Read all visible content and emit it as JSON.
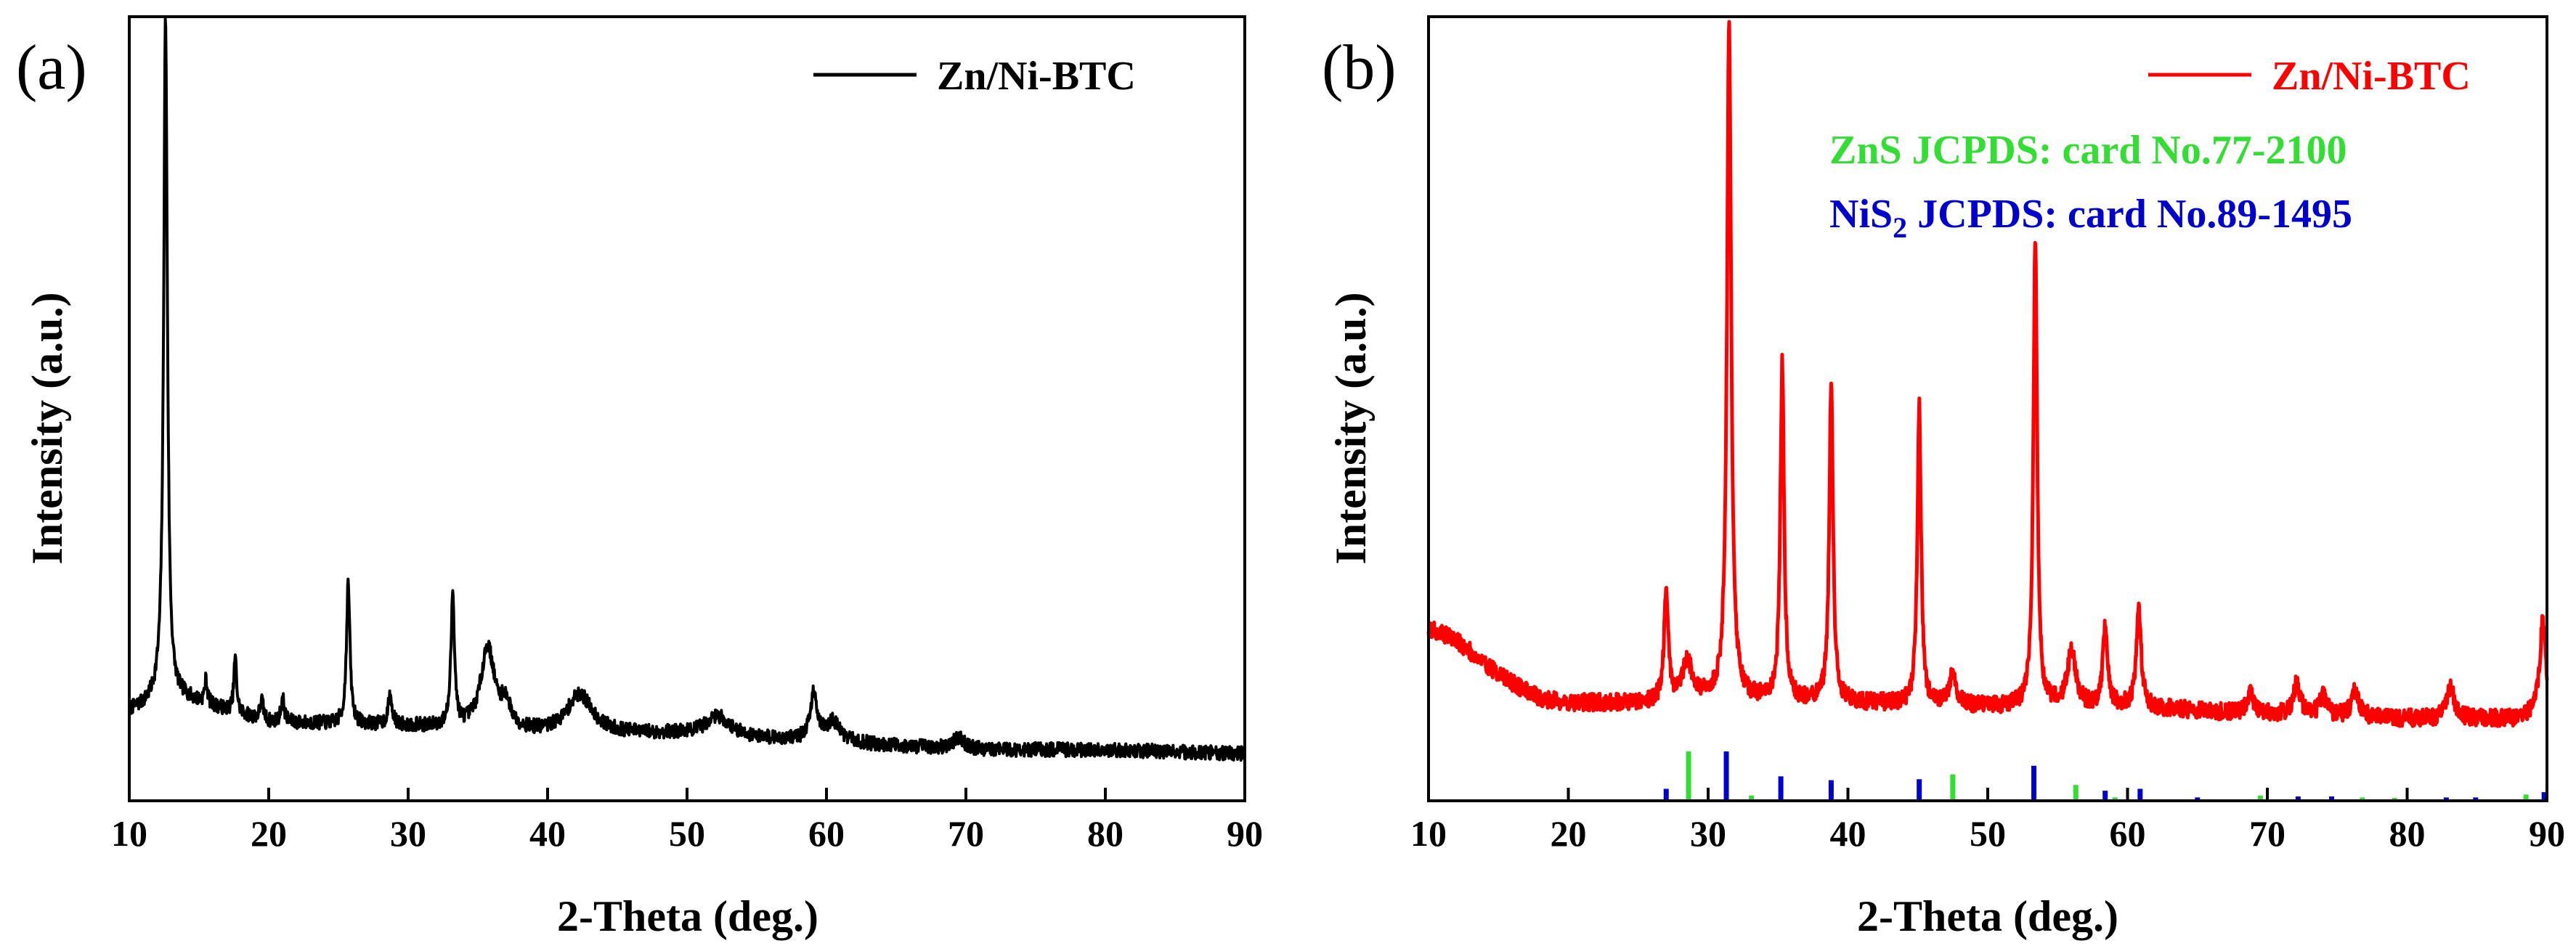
{
  "chart_data": [
    {
      "panel": "(a)",
      "type": "line",
      "xlabel": "2-Theta (deg.)",
      "ylabel": "Intensity (a.u.)",
      "xlim": [
        10,
        90
      ],
      "ylim": [
        0,
        100
      ],
      "xticks": [
        10,
        20,
        30,
        40,
        50,
        60,
        70,
        80,
        90
      ],
      "yticks_shown": false,
      "legend_position": "top-right",
      "series": [
        {
          "name": "Zn/Ni-BTC",
          "color": "#000000",
          "baseline": [
            [
              10,
              11.5
            ],
            [
              11,
              12.0
            ],
            [
              12,
              13.0
            ],
            [
              14,
              13.0
            ],
            [
              20,
              10.0
            ],
            [
              30,
              9.5
            ],
            [
              40,
              8.5
            ],
            [
              50,
              8.5
            ],
            [
              60,
              7.5
            ],
            [
              70,
              6.5
            ],
            [
              80,
              6.5
            ],
            [
              90,
              6.0
            ]
          ],
          "noise": 0.9,
          "peaks": [
            {
              "x": 12.6,
              "h": 87,
              "w": 0.16
            },
            {
              "x": 15.5,
              "h": 3,
              "w": 0.12
            },
            {
              "x": 17.6,
              "h": 7,
              "w": 0.12
            },
            {
              "x": 19.5,
              "h": 2.5,
              "w": 0.15
            },
            {
              "x": 21.0,
              "h": 3,
              "w": 0.15
            },
            {
              "x": 25.7,
              "h": 18,
              "w": 0.15
            },
            {
              "x": 28.7,
              "h": 3.5,
              "w": 0.18
            },
            {
              "x": 33.2,
              "h": 17,
              "w": 0.15
            },
            {
              "x": 35.7,
              "h": 10.5,
              "w": 0.6
            },
            {
              "x": 37.0,
              "h": 3,
              "w": 0.4
            },
            {
              "x": 42.3,
              "h": 5,
              "w": 1.1
            },
            {
              "x": 52.2,
              "h": 2.5,
              "w": 1.0
            },
            {
              "x": 59.1,
              "h": 6,
              "w": 0.3
            },
            {
              "x": 60.5,
              "h": 2.5,
              "w": 0.6
            },
            {
              "x": 69.5,
              "h": 1.5,
              "w": 0.5
            }
          ]
        }
      ]
    },
    {
      "panel": "(b)",
      "type": "line",
      "xlabel": "2-Theta (deg.)",
      "ylabel": "Intensity (a.u.)",
      "xlim": [
        10,
        90
      ],
      "ylim": [
        0,
        100
      ],
      "xticks": [
        10,
        20,
        30,
        40,
        50,
        60,
        70,
        80,
        90
      ],
      "yticks_shown": false,
      "legend_position": "top-right",
      "series": [
        {
          "name": "Zn/Ni-BTC",
          "color": "#ff0000",
          "baseline": [
            [
              10,
              22
            ],
            [
              12,
              20.5
            ],
            [
              14,
              17.5
            ],
            [
              16,
              15
            ],
            [
              18,
              13
            ],
            [
              20,
              12.5
            ],
            [
              25,
              12.5
            ],
            [
              30,
              13
            ],
            [
              40,
              12.5
            ],
            [
              50,
              12
            ],
            [
              60,
              12
            ],
            [
              70,
              11
            ],
            [
              80,
              10.5
            ],
            [
              88,
              10.5
            ],
            [
              90,
              12
            ]
          ],
          "noise": 1.1,
          "peaks": [
            {
              "x": 27.0,
              "h": 14,
              "w": 0.18
            },
            {
              "x": 28.5,
              "h": 5,
              "w": 0.4
            },
            {
              "x": 31.5,
              "h": 86,
              "w": 0.18
            },
            {
              "x": 35.3,
              "h": 43,
              "w": 0.16
            },
            {
              "x": 38.8,
              "h": 41,
              "w": 0.16
            },
            {
              "x": 45.1,
              "h": 38,
              "w": 0.16
            },
            {
              "x": 47.5,
              "h": 4,
              "w": 0.3
            },
            {
              "x": 53.4,
              "h": 60,
              "w": 0.16
            },
            {
              "x": 56.0,
              "h": 7,
              "w": 0.35
            },
            {
              "x": 58.4,
              "h": 10,
              "w": 0.2
            },
            {
              "x": 60.8,
              "h": 13,
              "w": 0.2
            },
            {
              "x": 68.8,
              "h": 2.5,
              "w": 0.3
            },
            {
              "x": 72.1,
              "h": 4,
              "w": 0.3
            },
            {
              "x": 74.0,
              "h": 2.5,
              "w": 0.3
            },
            {
              "x": 76.3,
              "h": 3.5,
              "w": 0.3
            },
            {
              "x": 83.1,
              "h": 4,
              "w": 0.3
            },
            {
              "x": 89.7,
              "h": 11,
              "w": 0.25
            }
          ]
        }
      ],
      "reference_sticks": [
        {
          "name": "ZnS JCPDS: card No.77-2100",
          "color": "#33dd33",
          "positions": [
            28.6,
            33.1,
            47.5,
            56.3,
            59.1,
            69.5,
            76.8,
            79.1,
            88.5
          ],
          "heights": [
            100,
            8,
            52,
            30,
            4,
            8,
            4,
            3,
            10
          ]
        },
        {
          "name": "NiS2 JCPDS: card No.89-1495",
          "color": "#0000cc",
          "positions": [
            27.0,
            31.3,
            35.2,
            38.8,
            45.1,
            53.3,
            58.4,
            60.9,
            65.0,
            72.2,
            74.6,
            82.8,
            84.9,
            89.8
          ],
          "heights": [
            22,
            100,
            48,
            40,
            42,
            70,
            18,
            22,
            4,
            6,
            6,
            4,
            4,
            15
          ]
        }
      ]
    }
  ],
  "legend_b": {
    "zns_text": "ZnS JCPDS: card No.77-2100",
    "nis2_prefix": "NiS",
    "nis2_subscript": "2",
    "nis2_suffix": " JCPDS: card No.89-1495"
  }
}
